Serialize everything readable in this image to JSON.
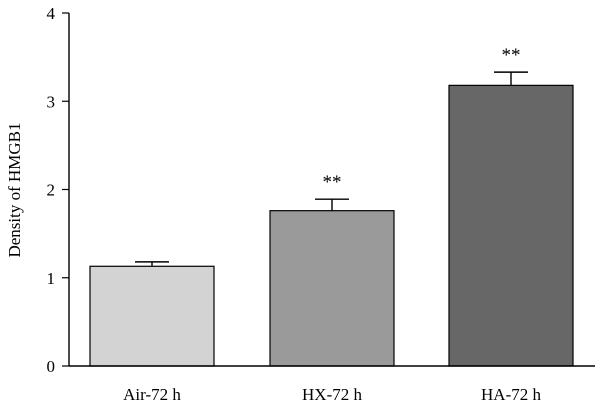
{
  "chart_data": {
    "type": "bar",
    "categories": [
      "Air-72 h",
      "HX-72 h",
      "HA-72 h"
    ],
    "values": [
      1.13,
      1.76,
      3.18
    ],
    "errors": [
      0.05,
      0.13,
      0.15
    ],
    "annotations": [
      "",
      "**",
      "**"
    ],
    "colors": [
      "#d3d3d3",
      "#9a9a9a",
      "#676767"
    ],
    "ylabel": "Density of HMGB1",
    "xlabel": "",
    "ylim": [
      0,
      4
    ],
    "yticks": [
      0,
      1,
      2,
      3,
      4
    ],
    "grid": false
  }
}
